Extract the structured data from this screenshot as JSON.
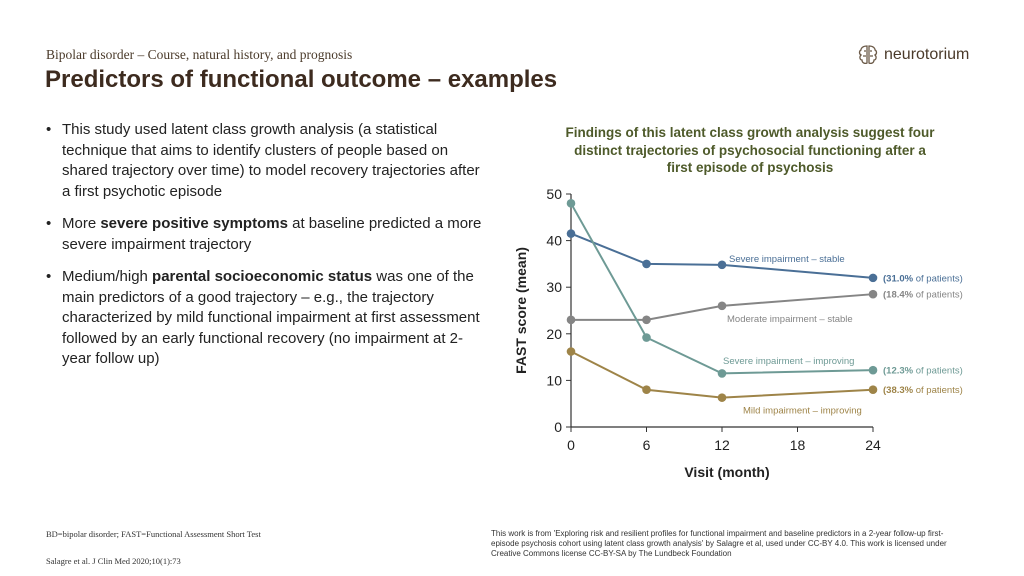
{
  "header": {
    "subtitle": "Bipolar disorder – Course, natural history, and prognosis",
    "title": "Predictors of functional outcome – examples"
  },
  "logo": {
    "text": "neurotorium",
    "icon": "brain-icon"
  },
  "bullets": [
    {
      "parts": [
        {
          "t": "This study used latent class growth analysis (a statistical technique that aims to identify clusters of people based on shared trajectory over time) to model recovery trajectories after a first psychotic episode",
          "b": false
        }
      ]
    },
    {
      "parts": [
        {
          "t": "More ",
          "b": false
        },
        {
          "t": "severe positive symptoms",
          "b": true
        },
        {
          "t": " at baseline predicted a more severe impairment trajectory",
          "b": false
        }
      ]
    },
    {
      "parts": [
        {
          "t": "Medium/high ",
          "b": false
        },
        {
          "t": "parental socioeconomic status",
          "b": true
        },
        {
          "t": " was one of the main predictors of a good trajectory – e.g., the trajectory characterized by mild functional impairment at first assessment followed by an early functional recovery (no impairment at 2-year follow up)",
          "b": false
        }
      ]
    }
  ],
  "chart_data": {
    "type": "line",
    "title": "Findings of this latent class growth analysis suggest four distinct trajectories of psychosocial functioning after a first episode of psychosis",
    "xlabel": "Visit (month)",
    "ylabel": "FAST score (mean)",
    "x_ticks": [
      0,
      6,
      12,
      18,
      24
    ],
    "y_ticks": [
      0,
      10,
      20,
      30,
      40,
      50
    ],
    "xlim": [
      0,
      24
    ],
    "ylim": [
      0,
      50
    ],
    "grid": false,
    "series": [
      {
        "name": "Severe impairment – stable",
        "x": [
          0,
          6,
          12,
          24
        ],
        "values": [
          41.5,
          35,
          34.8,
          32
        ],
        "color": "#4a6f96",
        "pct_bold": "(31.0%",
        "pct_rest": " of patients)"
      },
      {
        "name": "Moderate impairment – stable",
        "x": [
          0,
          6,
          12,
          24
        ],
        "values": [
          23,
          23,
          26,
          28.5
        ],
        "color": "#858585",
        "pct_bold": "(18.4%",
        "pct_rest": " of patients)"
      },
      {
        "name": "Severe impairment – improving",
        "x": [
          0,
          6,
          12,
          24
        ],
        "values": [
          48,
          19.2,
          11.5,
          12.2
        ],
        "color": "#6e9a95",
        "pct_bold": "(12.3%",
        "pct_rest": " of patients)"
      },
      {
        "name": "Mild impairment – improving",
        "x": [
          0,
          6,
          12,
          24
        ],
        "values": [
          16.2,
          8,
          6.3,
          8
        ],
        "color": "#9e8448",
        "pct_bold": "(38.3%",
        "pct_rest": " of patients)"
      }
    ]
  },
  "footer": {
    "abbreviations": "BD=bipolar disorder; FAST=Functional Assessment Short Test",
    "reference": "Salagre et al. J Clin Med 2020;10(1):73",
    "license": "This work is from 'Exploring risk and resilient profiles for functional impairment and baseline predictors in a 2-year follow-up first-episode psychosis cohort using latent class growth analysis' by Salagre et al, used under CC-BY 4.0. This work is licensed under Creative Commons license CC-BY-SA by The Lundbeck Foundation"
  }
}
